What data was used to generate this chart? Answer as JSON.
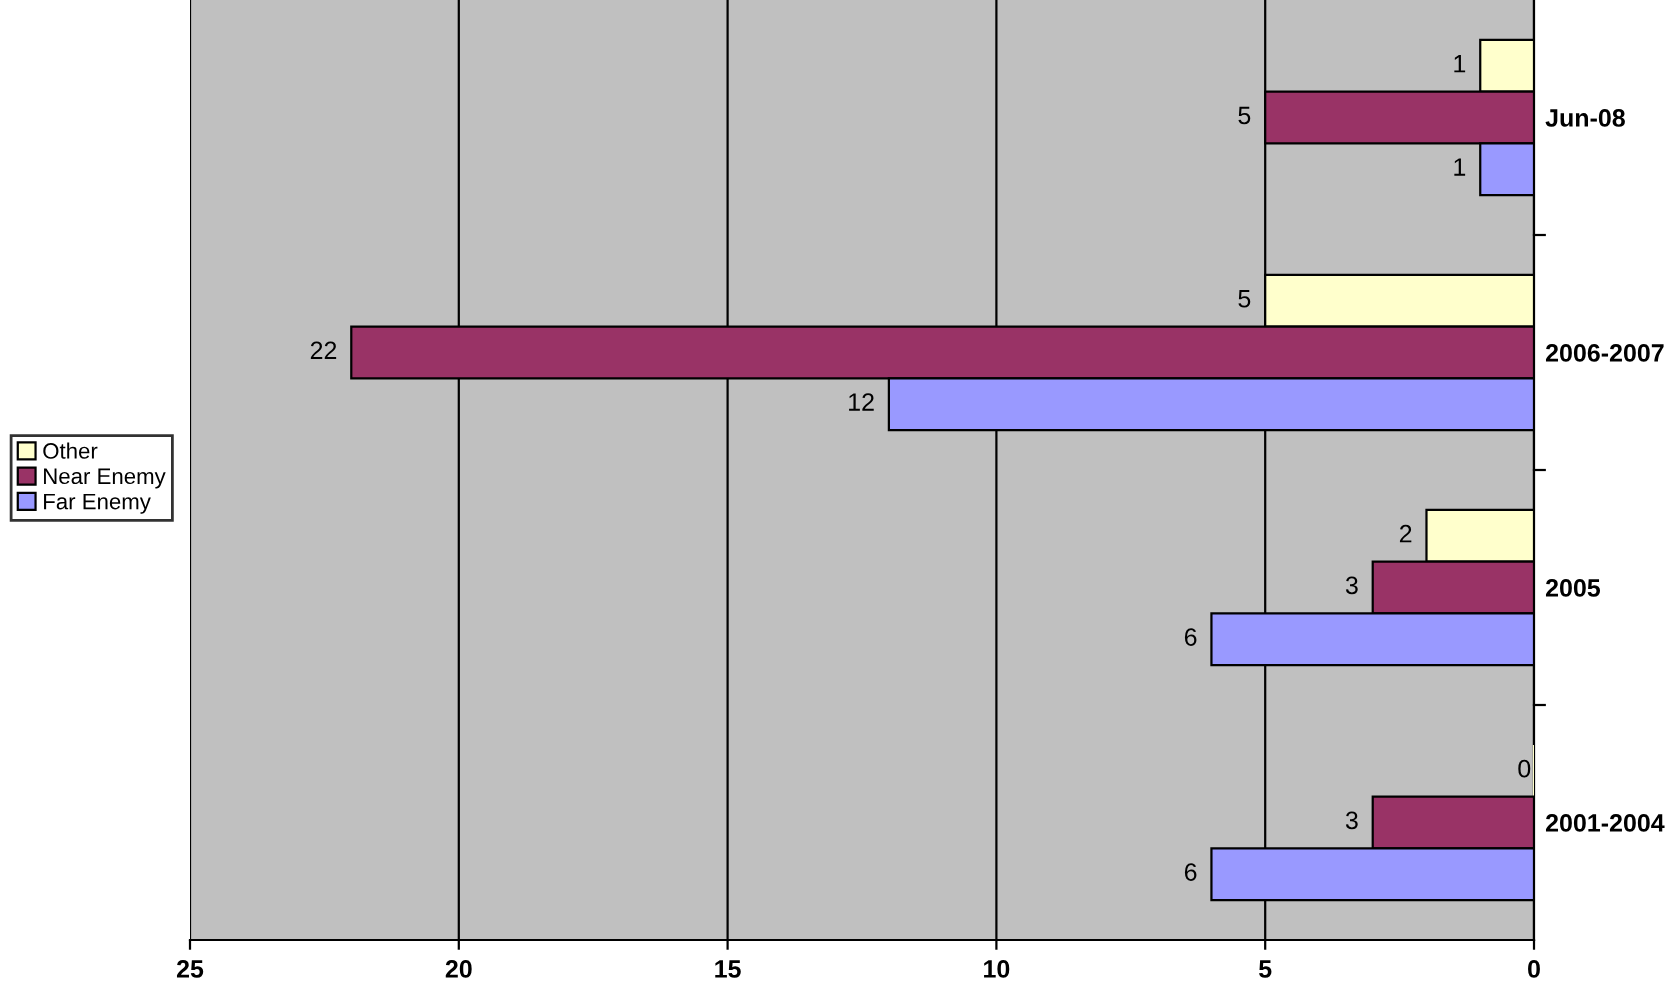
{
  "chart_data": {
    "type": "bar",
    "orientation": "horizontal",
    "categories": [
      "Jun-08",
      "2006-2007",
      "2005",
      "2001-2004"
    ],
    "series": [
      {
        "name": "Other",
        "color": "#ffffcc",
        "values": [
          1,
          5,
          2,
          0
        ]
      },
      {
        "name": "Near Enemy",
        "color": "#993366",
        "values": [
          5,
          22,
          3,
          3
        ]
      },
      {
        "name": "Far Enemy",
        "color": "#9999ff",
        "values": [
          1,
          12,
          6,
          6
        ]
      }
    ],
    "xlim": [
      25,
      0
    ],
    "xticks": [
      25,
      20,
      15,
      10,
      5,
      0
    ],
    "grid": "x",
    "data_labels": true,
    "legend": "left"
  }
}
